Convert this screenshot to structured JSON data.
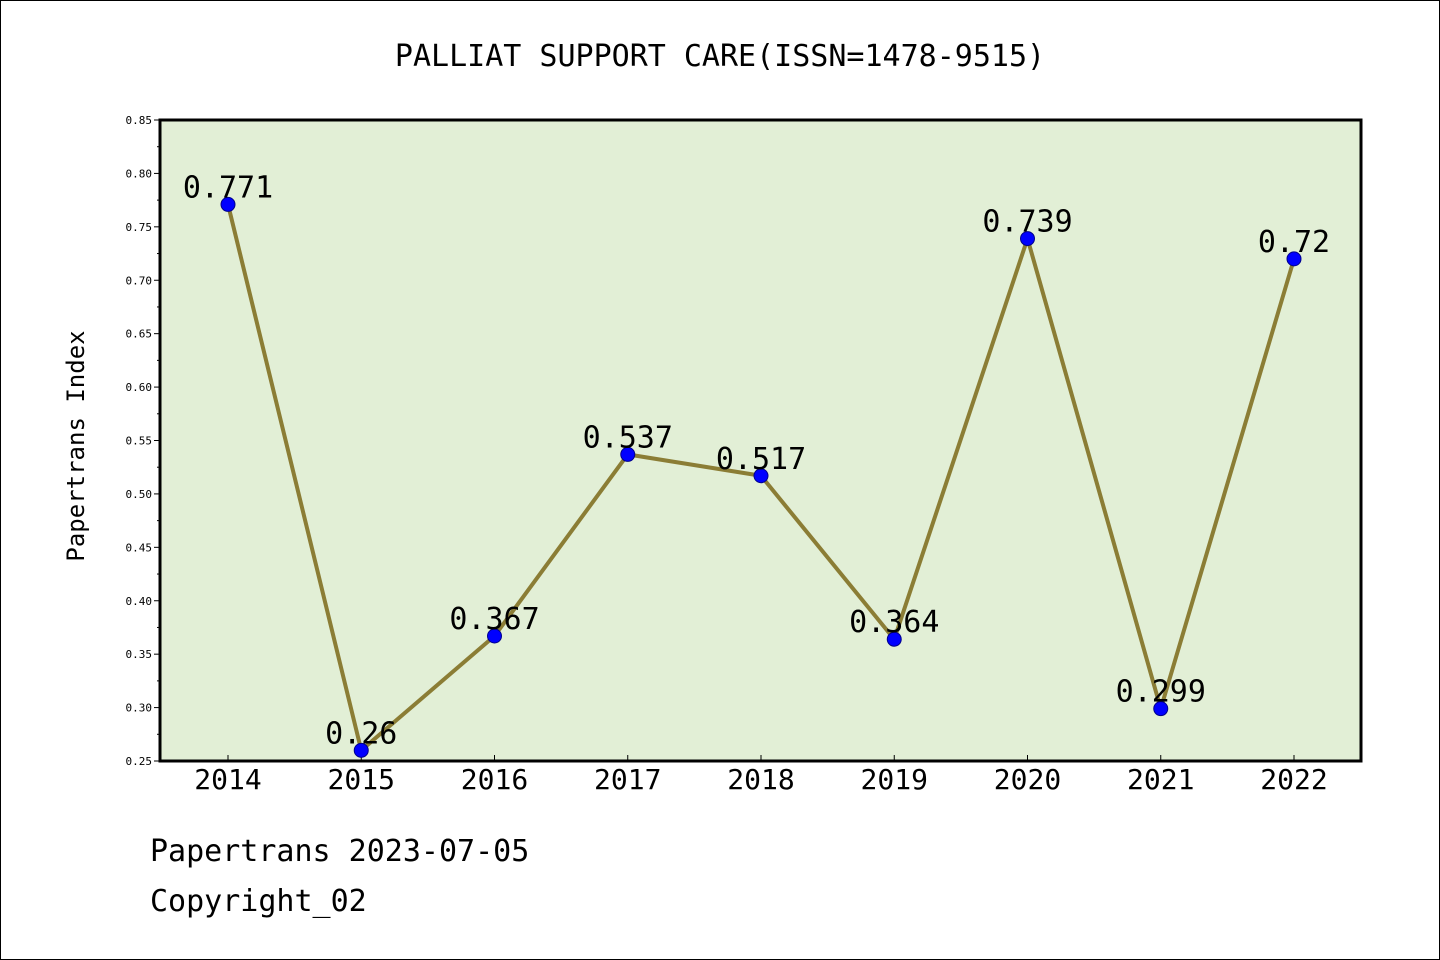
{
  "chart_data": {
    "type": "line",
    "title": "PALLIAT SUPPORT CARE(ISSN=1478-9515)",
    "xlabel": "",
    "ylabel": "Papertrans Index",
    "x": [
      "2014",
      "2015",
      "2016",
      "2017",
      "2018",
      "2019",
      "2020",
      "2021",
      "2022"
    ],
    "series": [
      {
        "values": [
          0.771,
          0.26,
          0.367,
          0.537,
          0.517,
          0.364,
          0.739,
          0.299,
          0.72
        ]
      }
    ],
    "data_labels": [
      "0.771",
      "0.26",
      "0.367",
      "0.537",
      "0.517",
      "0.364",
      "0.739",
      "0.299",
      "0.72"
    ],
    "ylim": [
      0.25,
      0.85
    ],
    "yticks": [
      "0.25",
      "0.30",
      "0.35",
      "0.40",
      "0.45",
      "0.50",
      "0.55",
      "0.60",
      "0.65",
      "0.70",
      "0.75",
      "0.80",
      "0.85"
    ],
    "grid": false,
    "colors": {
      "plot_background": "#e2efd6",
      "line": "#8b7d35",
      "marker": "#0000ff"
    }
  },
  "footer": {
    "line1": "Papertrans 2023-07-05",
    "line2": "Copyright_02"
  }
}
